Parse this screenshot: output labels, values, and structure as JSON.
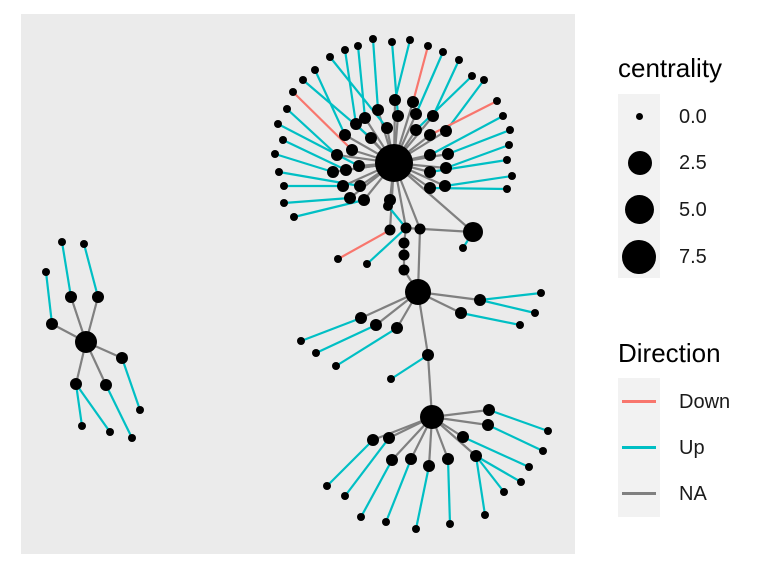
{
  "legend": {
    "centrality": {
      "title": "centrality",
      "items": [
        {
          "label": "0.0",
          "value": 0.0
        },
        {
          "label": "2.5",
          "value": 2.5
        },
        {
          "label": "5.0",
          "value": 5.0
        },
        {
          "label": "7.5",
          "value": 7.5
        }
      ]
    },
    "direction": {
      "title": "Direction",
      "items": [
        {
          "label": "Down",
          "color": "#f8766d"
        },
        {
          "label": "Up",
          "color": "#00bfc4"
        },
        {
          "label": "NA",
          "color": "#808080"
        }
      ]
    }
  },
  "colors": {
    "panel": "#ebebeb",
    "node": "#000000",
    "down": "#f8766d",
    "up": "#00bfc4",
    "na": "#808080"
  }
}
